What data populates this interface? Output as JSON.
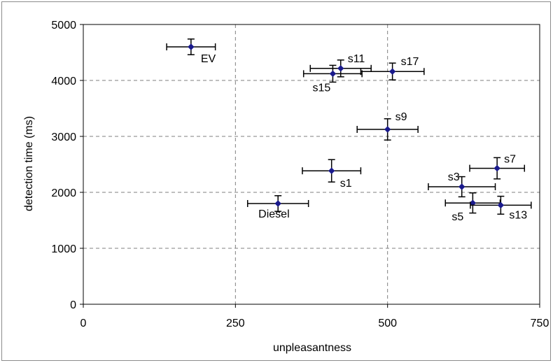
{
  "chart_data": {
    "type": "scatter",
    "title": "",
    "xlabel": "unpleasantness",
    "ylabel": "detection time (ms)",
    "xlim": [
      0,
      750
    ],
    "ylim": [
      0,
      5000
    ],
    "xticks": [
      0,
      250,
      500,
      750
    ],
    "yticks": [
      0,
      1000,
      2000,
      3000,
      4000,
      5000
    ],
    "grid": "dashed",
    "legend": "none",
    "colors": {
      "marker": "#1a1a8c",
      "errorbar": "#000000",
      "grid": "#7f7f7f",
      "plotarea": "#000000"
    },
    "points": [
      {
        "label": "EV",
        "x": 177,
        "y": 4600,
        "xerr": 40,
        "yerr": 140
      },
      {
        "label": "s11",
        "x": 423,
        "y": 4215,
        "xerr": 50,
        "yerr": 150
      },
      {
        "label": "s15",
        "x": 410,
        "y": 4120,
        "xerr": 48,
        "yerr": 150
      },
      {
        "label": "s17",
        "x": 508,
        "y": 4160,
        "xerr": 52,
        "yerr": 150
      },
      {
        "label": "s9",
        "x": 500,
        "y": 3125,
        "xerr": 50,
        "yerr": 190
      },
      {
        "label": "s1",
        "x": 408,
        "y": 2385,
        "xerr": 48,
        "yerr": 200
      },
      {
        "label": "s7",
        "x": 680,
        "y": 2430,
        "xerr": 45,
        "yerr": 190
      },
      {
        "label": "s3",
        "x": 622,
        "y": 2100,
        "xerr": 55,
        "yerr": 180
      },
      {
        "label": "s5",
        "x": 640,
        "y": 1810,
        "xerr": 45,
        "yerr": 180
      },
      {
        "label": "s13",
        "x": 686,
        "y": 1770,
        "xerr": 50,
        "yerr": 160
      },
      {
        "label": "Diesel",
        "x": 320,
        "y": 1800,
        "xerr": 50,
        "yerr": 140
      }
    ]
  }
}
